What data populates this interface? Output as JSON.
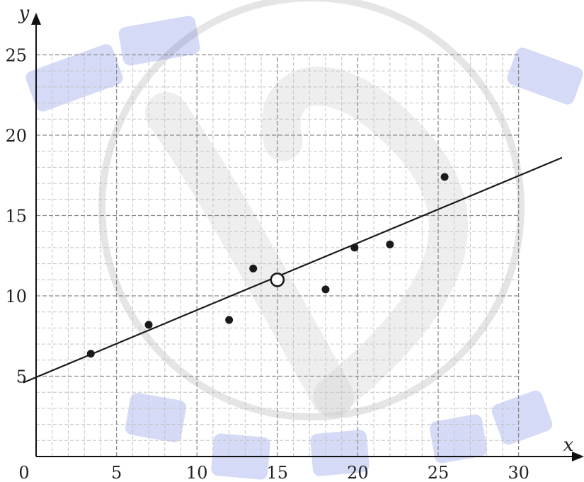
{
  "chart_data": {
    "type": "scatter",
    "xlabel": "x",
    "ylabel": "y",
    "xlim": [
      0,
      30
    ],
    "ylim": [
      0,
      25
    ],
    "grid": {
      "major_step": 5,
      "minor_step": 1
    },
    "origin_label": "0",
    "x_ticks": [
      {
        "value": 5,
        "label": "5"
      },
      {
        "value": 10,
        "label": "10"
      },
      {
        "value": 15,
        "label": "15"
      },
      {
        "value": 20,
        "label": "20"
      },
      {
        "value": 25,
        "label": "25"
      },
      {
        "value": 30,
        "label": "30"
      }
    ],
    "y_ticks": [
      {
        "value": 5,
        "label": "5"
      },
      {
        "value": 10,
        "label": "10"
      },
      {
        "value": 15,
        "label": "15"
      },
      {
        "value": 20,
        "label": "20"
      },
      {
        "value": 25,
        "label": "25"
      }
    ],
    "points": [
      {
        "x": 3.4,
        "y": 6.4
      },
      {
        "x": 7.0,
        "y": 8.2
      },
      {
        "x": 12.0,
        "y": 8.5
      },
      {
        "x": 13.5,
        "y": 11.7
      },
      {
        "x": 18.0,
        "y": 10.4
      },
      {
        "x": 19.8,
        "y": 13.0
      },
      {
        "x": 22.0,
        "y": 13.2
      },
      {
        "x": 25.4,
        "y": 17.4
      }
    ],
    "mean_point": {
      "x": 15,
      "y": 11
    },
    "regression_line": {
      "x_start": -0.8,
      "y_start": 4.6,
      "x_end": 32.7,
      "y_end": 18.6
    },
    "colors": {
      "axis": "#111111",
      "major_grid": "#8a8a8a",
      "minor_grid": "#c4c4c4",
      "points": "#1a1a1a",
      "line": "#1a1a1a",
      "watermark_blue": "#3f55d6",
      "watermark_gray": "#cfcfcf"
    }
  }
}
